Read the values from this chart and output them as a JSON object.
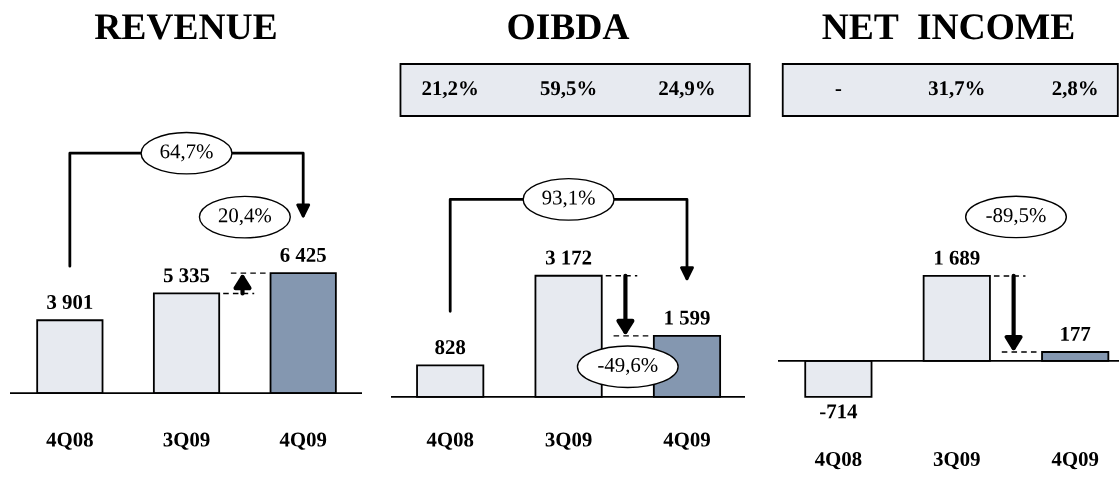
{
  "chart_data": [
    {
      "type": "bar",
      "title": "REVENUE",
      "categories": [
        "4Q08",
        "3Q09",
        "4Q09"
      ],
      "values": [
        3901,
        5335,
        6425
      ],
      "colors": [
        "#e7eaf0",
        "#e7eaf0",
        "#8497b0"
      ],
      "value_labels": [
        "3 901",
        "5 335",
        "6 425"
      ],
      "annotations": [
        "64,7%",
        "20,4%"
      ]
    },
    {
      "type": "bar",
      "title": "OIBDA",
      "categories": [
        "4Q08",
        "3Q09",
        "4Q09"
      ],
      "values": [
        828,
        3172,
        1599
      ],
      "colors": [
        "#e7eaf0",
        "#e7eaf0",
        "#8497b0"
      ],
      "value_labels": [
        "828",
        "3 172",
        "1 599"
      ],
      "annotations": [
        "21,2%",
        "59,5%",
        "24,9%",
        "93,1%",
        "-49,6%"
      ]
    },
    {
      "type": "bar",
      "title": "NET  INCOME",
      "categories": [
        "4Q08",
        "3Q09",
        "4Q09"
      ],
      "values": [
        -714,
        1689,
        177
      ],
      "colors": [
        "#e7eaf0",
        "#e7eaf0",
        "#8497b0"
      ],
      "value_labels": [
        "-714",
        "1 689",
        "177"
      ],
      "annotations": [
        "-",
        "31,7%",
        "2,8%",
        "-89,5%"
      ]
    }
  ]
}
